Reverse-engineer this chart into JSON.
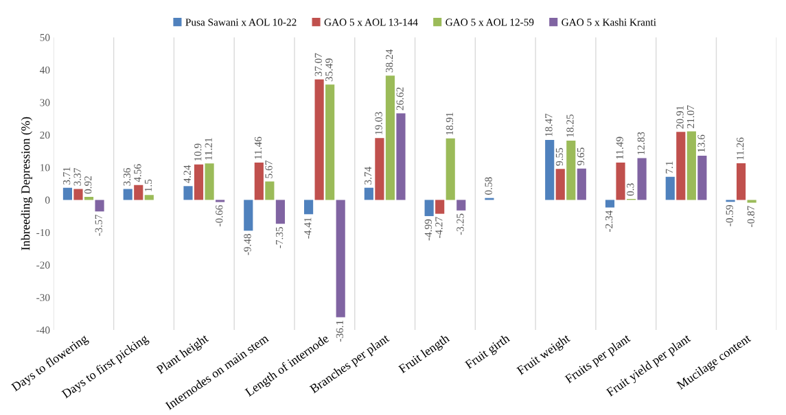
{
  "chart_data": {
    "type": "bar",
    "ylabel": "Inbreeding Depression (%)",
    "categories": [
      "Days to flowering",
      "Days to first picking",
      "Plant height",
      "Internodes on main stem",
      "Length of internode",
      "Branches per plant",
      "Fruit length",
      "Fruit girth",
      "Fruit weight",
      "Fruits per plant",
      "Fruit yield per plant",
      "Mucilage content"
    ],
    "series": [
      {
        "name": "Pusa Sawani x AOL 10-22",
        "color": "#4f81bd",
        "values": [
          3.71,
          3.36,
          4.24,
          -9.48,
          -4.41,
          3.74,
          -4.99,
          0.58,
          18.47,
          -2.34,
          7.1,
          -0.59
        ]
      },
      {
        "name": "GAO 5 x AOL 13-144",
        "color": "#c0504d",
        "values": [
          3.37,
          4.56,
          10.9,
          11.46,
          37.07,
          19.03,
          -4.27,
          null,
          9.55,
          11.49,
          20.91,
          11.26
        ]
      },
      {
        "name": "GAO 5 x AOL 12-59",
        "color": "#9bbb59",
        "values": [
          0.92,
          1.5,
          11.21,
          5.67,
          35.49,
          38.24,
          18.91,
          null,
          18.25,
          0.3,
          21.07,
          -0.87
        ]
      },
      {
        "name": "GAO 5 x Kashi Kranti",
        "color": "#8064a2",
        "values": [
          -3.57,
          null,
          -0.66,
          -7.35,
          -36.1,
          26.62,
          -3.25,
          null,
          9.65,
          12.83,
          13.6,
          null
        ]
      }
    ],
    "ylim": [
      -40,
      50
    ],
    "yticks": [
      -40,
      -30,
      -20,
      -10,
      0,
      10,
      20,
      30,
      40,
      50
    ],
    "grid": "x",
    "legend": "top",
    "data_labels": true
  }
}
